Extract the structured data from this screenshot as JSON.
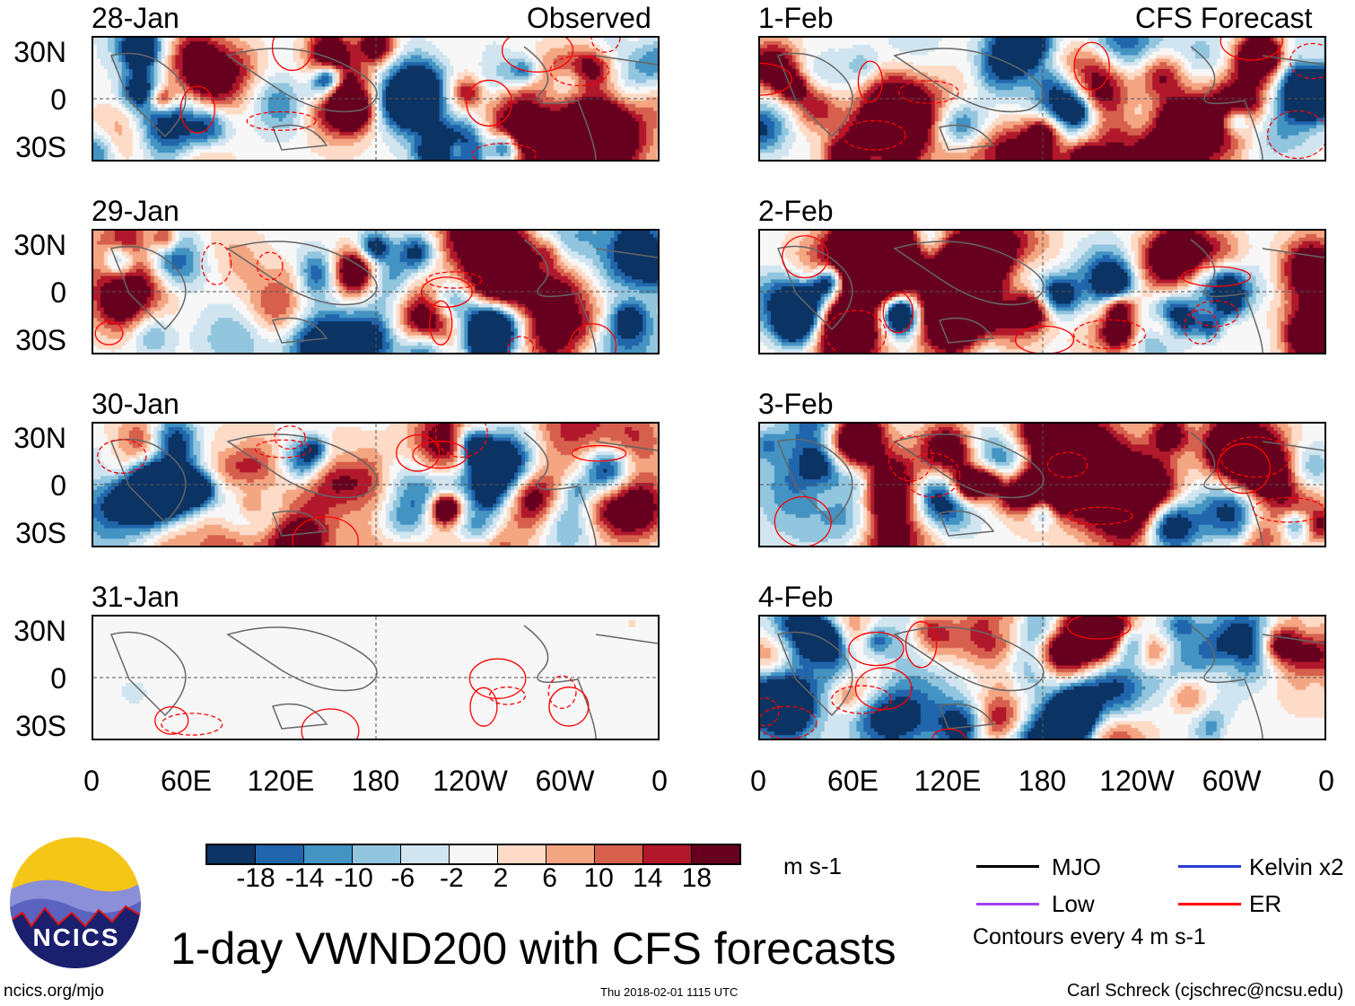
{
  "chart_data": {
    "type": "heatmap",
    "title": "1-day VWND200 with CFS forecasts",
    "units": "m s-1",
    "column_titles": [
      "Observed",
      "CFS Forecast"
    ],
    "panels": [
      {
        "date": "28-Jan",
        "source": "Observed"
      },
      {
        "date": "29-Jan",
        "source": "Observed"
      },
      {
        "date": "30-Jan",
        "source": "Observed"
      },
      {
        "date": "31-Jan",
        "source": "Observed"
      },
      {
        "date": "1-Feb",
        "source": "CFS Forecast"
      },
      {
        "date": "2-Feb",
        "source": "CFS Forecast"
      },
      {
        "date": "3-Feb",
        "source": "CFS Forecast"
      },
      {
        "date": "4-Feb",
        "source": "CFS Forecast"
      }
    ],
    "yticks": [
      "30N",
      "0",
      "30S"
    ],
    "xticks": [
      "0",
      "60E",
      "120E",
      "180",
      "120W",
      "60W",
      "0"
    ],
    "colorbar": {
      "ticks": [
        "-18",
        "-14",
        "-10",
        "-6",
        "-2",
        "2",
        "6",
        "10",
        "14",
        "18"
      ],
      "colors": [
        "#0b3364",
        "#2166ac",
        "#4393c3",
        "#92c5de",
        "#d1e5f0",
        "#f7f7f7",
        "#fddbc7",
        "#f4a582",
        "#d6604d",
        "#b2182b",
        "#67001f"
      ]
    },
    "legend": [
      {
        "label": "MJO",
        "color": "#000000"
      },
      {
        "label": "Kelvin x2",
        "color": "#2a3ad8"
      },
      {
        "label": "Low",
        "color": "#a040f0"
      },
      {
        "label": "ER",
        "color": "#ff0000"
      }
    ],
    "contour_note": "Contours every 4 m s-1"
  },
  "footer": {
    "logo": "NCICS",
    "url": "ncics.org/mjo",
    "timestamp": "Thu 2018-02-01 1115 UTC",
    "credit": "Carl Schreck (cjschrec@ncsu.edu)"
  }
}
